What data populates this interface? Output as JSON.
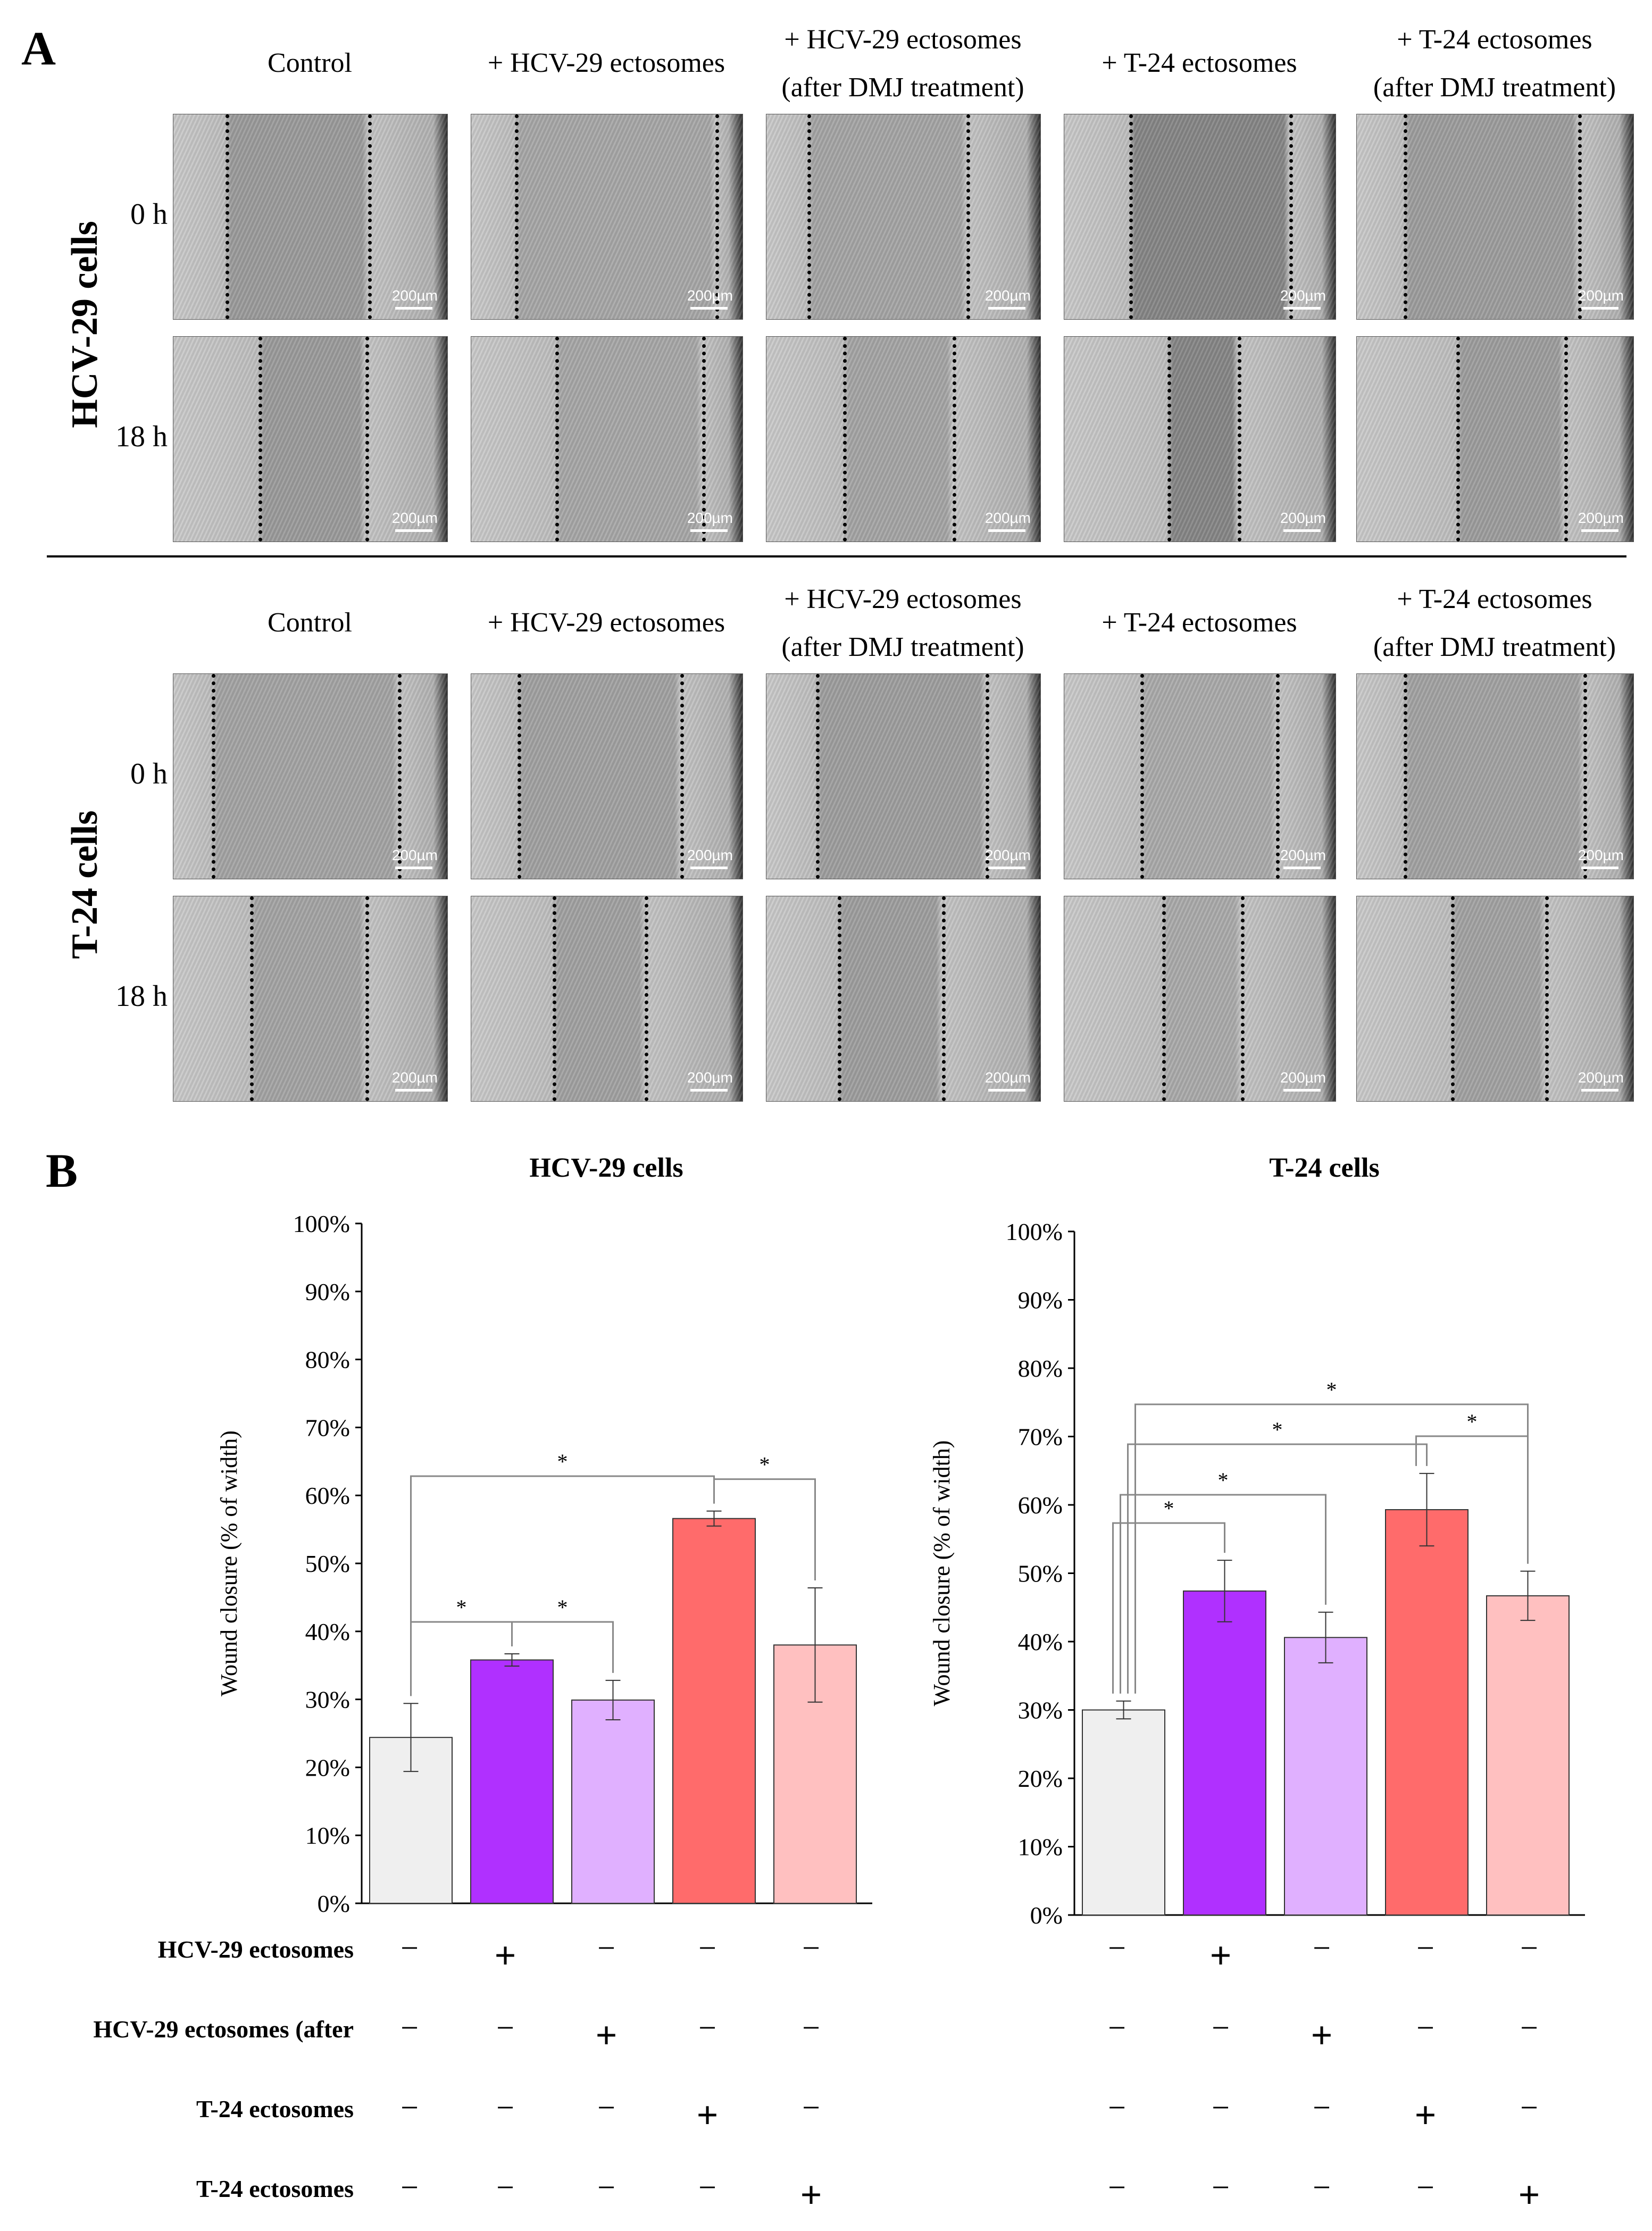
{
  "panel_a": {
    "letter": "A",
    "column_labels": [
      "Control",
      "+ HCV-29 ectosomes",
      "+ HCV-29 ectosomes\n(after DMJ treatment)",
      "+ T-24 ectosomes",
      "+ T-24 ectosomes\n(after DMJ treatment)"
    ],
    "col_lines": [
      [
        "Control"
      ],
      [
        "+ HCV-29 ectosomes"
      ],
      [
        "+ HCV-29 ectosomes",
        "(after DMJ treatment)"
      ],
      [
        "+ T-24 ectosomes"
      ],
      [
        "+ T-24 ectosomes",
        "(after DMJ treatment)"
      ]
    ],
    "groups": [
      {
        "name": "HCV-29 cells",
        "times": [
          "0 h",
          "18 h"
        ]
      },
      {
        "name": "T-24 cells",
        "times": [
          "0 h",
          "18 h"
        ]
      }
    ],
    "scale_bar_label": "200µm"
  },
  "panel_b": {
    "letter": "B",
    "condition_rows": [
      "HCV-29 ectosomes",
      "HCV-29 ectosomes (after",
      "T-24 ectosomes",
      "T-24 ectosomes"
    ],
    "presence_matrix": [
      [
        "−",
        "+",
        "−",
        "−",
        "−"
      ],
      [
        "−",
        "−",
        "+",
        "−",
        "−"
      ],
      [
        "−",
        "−",
        "−",
        "+",
        "−"
      ],
      [
        "−",
        "−",
        "−",
        "−",
        "+"
      ]
    ]
  },
  "colors": {
    "control": "#efefef",
    "hcv": "#b030ff",
    "hcv_dmj": "#e0b0ff",
    "t24": "#ff6b6b",
    "t24_dmj": "#ffc0c0",
    "bracket": "#888888"
  },
  "chart_data": [
    {
      "type": "bar",
      "title": "HCV-29 cells",
      "ylabel": "Wound closure (% of width)",
      "ylim": [
        0,
        100
      ],
      "yticks": [
        "0%",
        "10%",
        "20%",
        "30%",
        "40%",
        "50%",
        "60%",
        "70%",
        "80%",
        "90%",
        "100%"
      ],
      "categories": [
        "Control",
        "+ HCV-29 ectosomes",
        "+ HCV-29 ectosomes (after DMJ treatment)",
        "+ T-24 ectosomes",
        "+ T-24 ectosomes (after DMJ treatment)"
      ],
      "values": [
        24.4,
        35.8,
        29.9,
        56.6,
        38.0
      ],
      "errors": [
        5.0,
        0.9,
        2.9,
        1.1,
        8.4
      ],
      "significance": [
        {
          "from": 0,
          "to": 1,
          "label": "*",
          "level": 1
        },
        {
          "from": 1,
          "to": 2,
          "label": "*",
          "level": 1
        },
        {
          "from": 3,
          "to": 4,
          "label": "*",
          "level": 1
        },
        {
          "from": 0,
          "to": 3,
          "label": "*",
          "level": 2
        }
      ]
    },
    {
      "type": "bar",
      "title": "T-24 cells",
      "ylabel": "Wound closure (% of width)",
      "ylim": [
        0,
        100
      ],
      "yticks": [
        "0%",
        "10%",
        "20%",
        "30%",
        "40%",
        "50%",
        "60%",
        "70%",
        "80%",
        "90%",
        "100%"
      ],
      "categories": [
        "Control",
        "+ HCV-29 ectosomes",
        "+ HCV-29 ectosomes (after DMJ treatment)",
        "+ T-24 ectosomes",
        "+ T-24 ectosomes (after DMJ treatment)"
      ],
      "values": [
        30.0,
        47.4,
        40.6,
        59.3,
        46.7
      ],
      "errors": [
        1.3,
        4.5,
        3.7,
        5.3,
        3.6
      ],
      "significance": [
        {
          "from": 0,
          "to": 1,
          "label": "*",
          "level": 1
        },
        {
          "from": 3,
          "to": 4,
          "label": "*",
          "level": 1
        },
        {
          "from": 0,
          "to": 2,
          "label": "*",
          "level": 2
        },
        {
          "from": 0,
          "to": 3,
          "label": "*",
          "level": 3
        },
        {
          "from": 0,
          "to": 4,
          "label": "*",
          "level": 4
        }
      ]
    }
  ]
}
